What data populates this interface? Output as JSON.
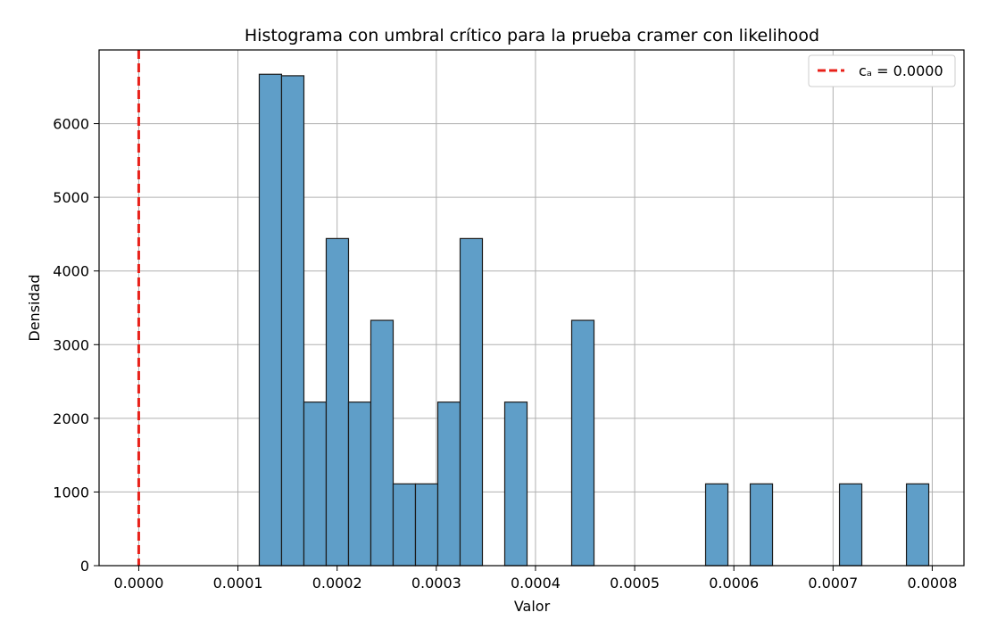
{
  "chart_data": {
    "type": "bar",
    "title": "Histograma con umbral crítico para la prueba cramer con  likelihood",
    "xlabel": "Valor",
    "ylabel": "Densidad",
    "xlim": [
      -4e-05,
      0.000832
    ],
    "ylim": [
      0,
      7000
    ],
    "xticks": [
      0.0,
      0.0001,
      0.0002,
      0.0003,
      0.0004,
      0.0005,
      0.0006,
      0.0007,
      0.0008
    ],
    "xtick_labels": [
      "0.0000",
      "0.0001",
      "0.0002",
      "0.0003",
      "0.0004",
      "0.0005",
      "0.0006",
      "0.0007",
      "0.0008"
    ],
    "yticks": [
      0,
      1000,
      2000,
      3000,
      4000,
      5000,
      6000
    ],
    "ytick_labels": [
      "0",
      "1000",
      "2000",
      "3000",
      "4000",
      "5000",
      "6000"
    ],
    "grid": true,
    "bar_color": "#5f9ec8",
    "bar_edge_color": "#1b1b1b",
    "bins": [
      {
        "x0": 0.0001215,
        "x1": 0.000144,
        "density": 6670
      },
      {
        "x0": 0.000144,
        "x1": 0.0001665,
        "density": 6650
      },
      {
        "x0": 0.0001665,
        "x1": 0.000189,
        "density": 2220
      },
      {
        "x0": 0.000189,
        "x1": 0.0002115,
        "density": 4440
      },
      {
        "x0": 0.0002115,
        "x1": 0.000234,
        "density": 2220
      },
      {
        "x0": 0.000234,
        "x1": 0.0002565,
        "density": 3330
      },
      {
        "x0": 0.0002565,
        "x1": 0.000279,
        "density": 1110
      },
      {
        "x0": 0.000279,
        "x1": 0.0003015,
        "density": 1110
      },
      {
        "x0": 0.0003015,
        "x1": 0.000324,
        "density": 2220
      },
      {
        "x0": 0.000324,
        "x1": 0.0003465,
        "density": 4440
      },
      {
        "x0": 0.0003465,
        "x1": 0.000369,
        "density": 0
      },
      {
        "x0": 0.000369,
        "x1": 0.0003915,
        "density": 2220
      },
      {
        "x0": 0.0003915,
        "x1": 0.000414,
        "density": 0
      },
      {
        "x0": 0.000414,
        "x1": 0.0004365,
        "density": 0
      },
      {
        "x0": 0.0004365,
        "x1": 0.000459,
        "density": 3330
      },
      {
        "x0": 0.000459,
        "x1": 0.0004815,
        "density": 0
      },
      {
        "x0": 0.0004815,
        "x1": 0.000504,
        "density": 0
      },
      {
        "x0": 0.000504,
        "x1": 0.0005265,
        "density": 0
      },
      {
        "x0": 0.0005265,
        "x1": 0.000549,
        "density": 0
      },
      {
        "x0": 0.000549,
        "x1": 0.0005715,
        "density": 0
      },
      {
        "x0": 0.0005715,
        "x1": 0.000594,
        "density": 1110
      },
      {
        "x0": 0.000594,
        "x1": 0.0006165,
        "density": 0
      },
      {
        "x0": 0.0006165,
        "x1": 0.000639,
        "density": 1110
      },
      {
        "x0": 0.000639,
        "x1": 0.0006615,
        "density": 0
      },
      {
        "x0": 0.0006615,
        "x1": 0.000684,
        "density": 0
      },
      {
        "x0": 0.000684,
        "x1": 0.0007065,
        "density": 0
      },
      {
        "x0": 0.0007065,
        "x1": 0.000729,
        "density": 1110
      },
      {
        "x0": 0.000729,
        "x1": 0.0007515,
        "density": 0
      },
      {
        "x0": 0.0007515,
        "x1": 0.000774,
        "density": 0
      },
      {
        "x0": 0.000774,
        "x1": 0.0007965,
        "density": 1110
      }
    ],
    "critical_line": {
      "x": 0.0,
      "color": "#e8211a",
      "label": "cₐ = 0.0000"
    },
    "legend": {
      "position": "top-right",
      "entries": [
        "cₐ = 0.0000"
      ]
    }
  }
}
